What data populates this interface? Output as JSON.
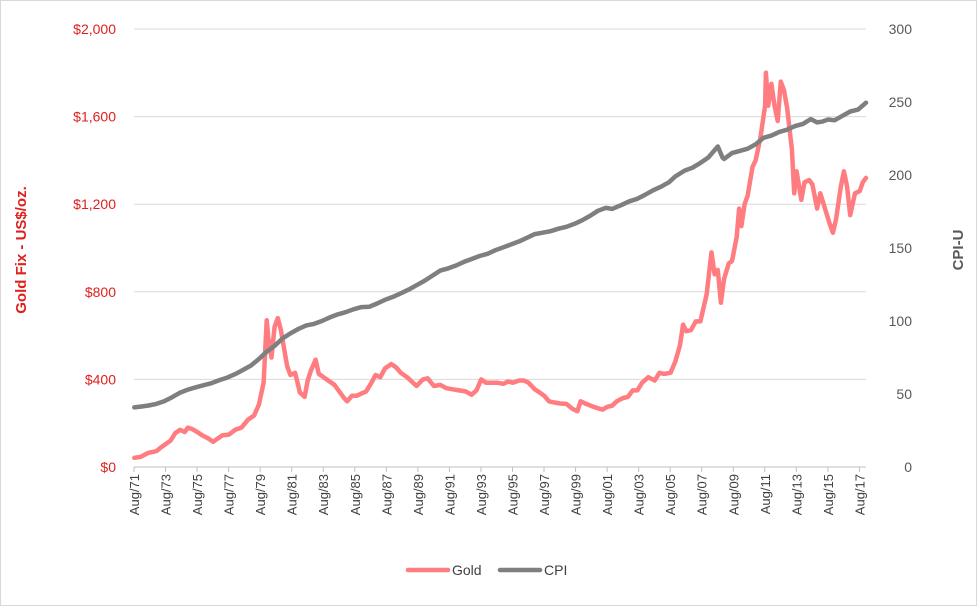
{
  "chart_data": {
    "type": "line",
    "title": "",
    "xlabel": "",
    "ylabel_left": "Gold Fix - US$/oz.",
    "ylabel_right": "CPI-U",
    "ylim_left": [
      0,
      2000
    ],
    "ylim_right": [
      0,
      300
    ],
    "y_ticks_left": [
      "$0",
      "$400",
      "$800",
      "$1,200",
      "$1,600",
      "$2,000"
    ],
    "y_tick_values_left": [
      0,
      400,
      800,
      1200,
      1600,
      2000
    ],
    "y_ticks_right": [
      "0",
      "50",
      "100",
      "150",
      "200",
      "250",
      "300"
    ],
    "y_tick_values_right": [
      0,
      50,
      100,
      150,
      200,
      250,
      300
    ],
    "x_range": [
      1971.583,
      2018.0
    ],
    "x_ticks": [
      "Aug/71",
      "Aug/73",
      "Aug/75",
      "Aug/77",
      "Aug/79",
      "Aug/81",
      "Aug/83",
      "Aug/85",
      "Aug/87",
      "Aug/89",
      "Aug/91",
      "Aug/93",
      "Aug/95",
      "Aug/97",
      "Aug/99",
      "Aug/01",
      "Aug/03",
      "Aug/05",
      "Aug/07",
      "Aug/09",
      "Aug/11",
      "Aug/13",
      "Aug/15",
      "Aug/17"
    ],
    "x_tick_values": [
      1971.583,
      1973.583,
      1975.583,
      1977.583,
      1979.583,
      1981.583,
      1983.583,
      1985.583,
      1987.583,
      1989.583,
      1991.583,
      1993.583,
      1995.583,
      1997.583,
      1999.583,
      2001.583,
      2003.583,
      2005.583,
      2007.583,
      2009.583,
      2011.583,
      2013.583,
      2015.583,
      2017.583
    ],
    "grid": "horizontal",
    "legend_position": "bottom",
    "series": [
      {
        "name": "Gold",
        "axis": "left",
        "color": "#ff7c80",
        "points": [
          [
            1971.6,
            42
          ],
          [
            1972.0,
            46
          ],
          [
            1972.5,
            65
          ],
          [
            1973.0,
            72
          ],
          [
            1973.3,
            90
          ],
          [
            1973.6,
            105
          ],
          [
            1973.9,
            120
          ],
          [
            1974.2,
            155
          ],
          [
            1974.5,
            170
          ],
          [
            1974.8,
            160
          ],
          [
            1975.0,
            180
          ],
          [
            1975.3,
            172
          ],
          [
            1975.6,
            160
          ],
          [
            1975.9,
            145
          ],
          [
            1976.3,
            130
          ],
          [
            1976.6,
            115
          ],
          [
            1976.9,
            130
          ],
          [
            1977.2,
            145
          ],
          [
            1977.6,
            148
          ],
          [
            1978.0,
            170
          ],
          [
            1978.4,
            180
          ],
          [
            1978.8,
            215
          ],
          [
            1979.2,
            235
          ],
          [
            1979.5,
            285
          ],
          [
            1979.8,
            385
          ],
          [
            1980.0,
            670
          ],
          [
            1980.1,
            590
          ],
          [
            1980.3,
            500
          ],
          [
            1980.5,
            640
          ],
          [
            1980.7,
            680
          ],
          [
            1980.9,
            625
          ],
          [
            1981.1,
            540
          ],
          [
            1981.3,
            460
          ],
          [
            1981.5,
            420
          ],
          [
            1981.8,
            430
          ],
          [
            1982.1,
            340
          ],
          [
            1982.4,
            320
          ],
          [
            1982.6,
            395
          ],
          [
            1982.8,
            440
          ],
          [
            1983.1,
            490
          ],
          [
            1983.3,
            425
          ],
          [
            1983.6,
            410
          ],
          [
            1984.0,
            390
          ],
          [
            1984.3,
            375
          ],
          [
            1984.6,
            345
          ],
          [
            1984.9,
            315
          ],
          [
            1985.1,
            300
          ],
          [
            1985.4,
            325
          ],
          [
            1985.7,
            325
          ],
          [
            1986.0,
            335
          ],
          [
            1986.3,
            345
          ],
          [
            1986.6,
            380
          ],
          [
            1986.9,
            420
          ],
          [
            1987.2,
            410
          ],
          [
            1987.5,
            450
          ],
          [
            1987.9,
            470
          ],
          [
            1988.2,
            455
          ],
          [
            1988.5,
            430
          ],
          [
            1988.9,
            410
          ],
          [
            1989.2,
            390
          ],
          [
            1989.5,
            370
          ],
          [
            1989.9,
            400
          ],
          [
            1990.2,
            405
          ],
          [
            1990.6,
            370
          ],
          [
            1991.0,
            375
          ],
          [
            1991.4,
            360
          ],
          [
            1991.8,
            355
          ],
          [
            1992.2,
            350
          ],
          [
            1992.6,
            345
          ],
          [
            1993.0,
            330
          ],
          [
            1993.3,
            350
          ],
          [
            1993.6,
            400
          ],
          [
            1993.9,
            385
          ],
          [
            1994.3,
            385
          ],
          [
            1994.6,
            385
          ],
          [
            1995.0,
            380
          ],
          [
            1995.3,
            390
          ],
          [
            1995.6,
            385
          ],
          [
            1996.0,
            395
          ],
          [
            1996.3,
            395
          ],
          [
            1996.6,
            385
          ],
          [
            1997.0,
            355
          ],
          [
            1997.3,
            340
          ],
          [
            1997.6,
            325
          ],
          [
            1997.9,
            300
          ],
          [
            1998.2,
            295
          ],
          [
            1998.6,
            290
          ],
          [
            1999.0,
            288
          ],
          [
            1999.4,
            265
          ],
          [
            1999.7,
            255
          ],
          [
            1999.9,
            300
          ],
          [
            2000.2,
            290
          ],
          [
            2000.6,
            278
          ],
          [
            2001.0,
            268
          ],
          [
            2001.3,
            262
          ],
          [
            2001.6,
            275
          ],
          [
            2001.9,
            280
          ],
          [
            2002.2,
            300
          ],
          [
            2002.6,
            315
          ],
          [
            2002.9,
            320
          ],
          [
            2003.2,
            350
          ],
          [
            2003.5,
            350
          ],
          [
            2003.8,
            385
          ],
          [
            2004.2,
            410
          ],
          [
            2004.6,
            395
          ],
          [
            2004.9,
            430
          ],
          [
            2005.2,
            425
          ],
          [
            2005.6,
            430
          ],
          [
            2005.9,
            480
          ],
          [
            2006.2,
            555
          ],
          [
            2006.4,
            650
          ],
          [
            2006.6,
            620
          ],
          [
            2006.9,
            625
          ],
          [
            2007.2,
            665
          ],
          [
            2007.5,
            665
          ],
          [
            2007.9,
            790
          ],
          [
            2008.1,
            920
          ],
          [
            2008.2,
            980
          ],
          [
            2008.4,
            880
          ],
          [
            2008.6,
            900
          ],
          [
            2008.8,
            750
          ],
          [
            2009.0,
            860
          ],
          [
            2009.3,
            930
          ],
          [
            2009.5,
            940
          ],
          [
            2009.8,
            1050
          ],
          [
            2009.95,
            1180
          ],
          [
            2010.1,
            1100
          ],
          [
            2010.3,
            1200
          ],
          [
            2010.5,
            1240
          ],
          [
            2010.8,
            1370
          ],
          [
            2011.0,
            1400
          ],
          [
            2011.3,
            1500
          ],
          [
            2011.6,
            1650
          ],
          [
            2011.65,
            1800
          ],
          [
            2011.8,
            1650
          ],
          [
            2012.0,
            1750
          ],
          [
            2012.2,
            1650
          ],
          [
            2012.4,
            1580
          ],
          [
            2012.6,
            1760
          ],
          [
            2012.8,
            1720
          ],
          [
            2013.0,
            1640
          ],
          [
            2013.3,
            1450
          ],
          [
            2013.45,
            1250
          ],
          [
            2013.6,
            1350
          ],
          [
            2013.9,
            1220
          ],
          [
            2014.1,
            1300
          ],
          [
            2014.4,
            1310
          ],
          [
            2014.6,
            1290
          ],
          [
            2014.9,
            1180
          ],
          [
            2015.1,
            1250
          ],
          [
            2015.4,
            1180
          ],
          [
            2015.7,
            1110
          ],
          [
            2015.9,
            1070
          ],
          [
            2016.1,
            1130
          ],
          [
            2016.4,
            1280
          ],
          [
            2016.6,
            1350
          ],
          [
            2016.8,
            1280
          ],
          [
            2017.0,
            1150
          ],
          [
            2017.3,
            1250
          ],
          [
            2017.6,
            1260
          ],
          [
            2017.8,
            1300
          ],
          [
            2018.0,
            1320
          ]
        ]
      },
      {
        "name": "CPI",
        "axis": "right",
        "color": "#7f7f7f",
        "points": [
          [
            1971.6,
            40.8
          ],
          [
            1972.0,
            41.4
          ],
          [
            1972.5,
            42.1
          ],
          [
            1973.0,
            43.2
          ],
          [
            1973.5,
            45.0
          ],
          [
            1974.0,
            47.8
          ],
          [
            1974.5,
            50.9
          ],
          [
            1975.0,
            53.0
          ],
          [
            1975.5,
            54.6
          ],
          [
            1976.0,
            56.0
          ],
          [
            1976.5,
            57.4
          ],
          [
            1977.0,
            59.5
          ],
          [
            1977.5,
            61.2
          ],
          [
            1978.0,
            63.6
          ],
          [
            1978.5,
            66.5
          ],
          [
            1979.0,
            69.5
          ],
          [
            1979.5,
            74.0
          ],
          [
            1980.0,
            79.0
          ],
          [
            1980.5,
            83.0
          ],
          [
            1981.0,
            88.0
          ],
          [
            1981.5,
            91.5
          ],
          [
            1982.0,
            94.5
          ],
          [
            1982.5,
            97.0
          ],
          [
            1983.0,
            98.0
          ],
          [
            1983.5,
            100.0
          ],
          [
            1984.0,
            102.5
          ],
          [
            1984.5,
            104.5
          ],
          [
            1985.0,
            106.0
          ],
          [
            1985.5,
            108.0
          ],
          [
            1986.0,
            109.5
          ],
          [
            1986.5,
            109.7
          ],
          [
            1987.0,
            112.0
          ],
          [
            1987.5,
            114.5
          ],
          [
            1988.0,
            116.5
          ],
          [
            1988.5,
            119.0
          ],
          [
            1989.0,
            121.5
          ],
          [
            1989.5,
            124.5
          ],
          [
            1990.0,
            127.5
          ],
          [
            1990.5,
            131.0
          ],
          [
            1991.0,
            134.5
          ],
          [
            1991.5,
            136.0
          ],
          [
            1992.0,
            138.0
          ],
          [
            1992.5,
            140.5
          ],
          [
            1993.0,
            142.5
          ],
          [
            1993.5,
            144.5
          ],
          [
            1994.0,
            146.0
          ],
          [
            1994.5,
            148.5
          ],
          [
            1995.0,
            150.5
          ],
          [
            1995.5,
            152.5
          ],
          [
            1996.0,
            154.5
          ],
          [
            1996.5,
            157.0
          ],
          [
            1997.0,
            159.5
          ],
          [
            1997.5,
            160.5
          ],
          [
            1998.0,
            161.5
          ],
          [
            1998.5,
            163.2
          ],
          [
            1999.0,
            164.5
          ],
          [
            1999.5,
            166.5
          ],
          [
            2000.0,
            169.0
          ],
          [
            2000.5,
            172.0
          ],
          [
            2001.0,
            175.5
          ],
          [
            2001.5,
            177.5
          ],
          [
            2001.9,
            176.8
          ],
          [
            2002.5,
            179.5
          ],
          [
            2003.0,
            182.0
          ],
          [
            2003.5,
            183.7
          ],
          [
            2004.0,
            186.5
          ],
          [
            2004.5,
            189.5
          ],
          [
            2005.0,
            192.0
          ],
          [
            2005.5,
            195.0
          ],
          [
            2005.9,
            199.0
          ],
          [
            2006.5,
            203.0
          ],
          [
            2007.0,
            205.0
          ],
          [
            2007.5,
            208.3
          ],
          [
            2008.0,
            212.0
          ],
          [
            2008.4,
            217.0
          ],
          [
            2008.6,
            219.5
          ],
          [
            2008.9,
            212.0
          ],
          [
            2009.0,
            211.0
          ],
          [
            2009.5,
            215.0
          ],
          [
            2010.0,
            216.5
          ],
          [
            2010.5,
            218.0
          ],
          [
            2011.0,
            221.0
          ],
          [
            2011.5,
            225.5
          ],
          [
            2012.0,
            227.0
          ],
          [
            2012.5,
            229.5
          ],
          [
            2013.0,
            231.0
          ],
          [
            2013.5,
            233.5
          ],
          [
            2014.0,
            235.0
          ],
          [
            2014.5,
            238.3
          ],
          [
            2014.9,
            236.0
          ],
          [
            2015.2,
            236.5
          ],
          [
            2015.6,
            238.0
          ],
          [
            2016.0,
            237.5
          ],
          [
            2016.5,
            240.5
          ],
          [
            2017.0,
            243.5
          ],
          [
            2017.5,
            244.8
          ],
          [
            2018.0,
            249.5
          ]
        ]
      }
    ]
  }
}
